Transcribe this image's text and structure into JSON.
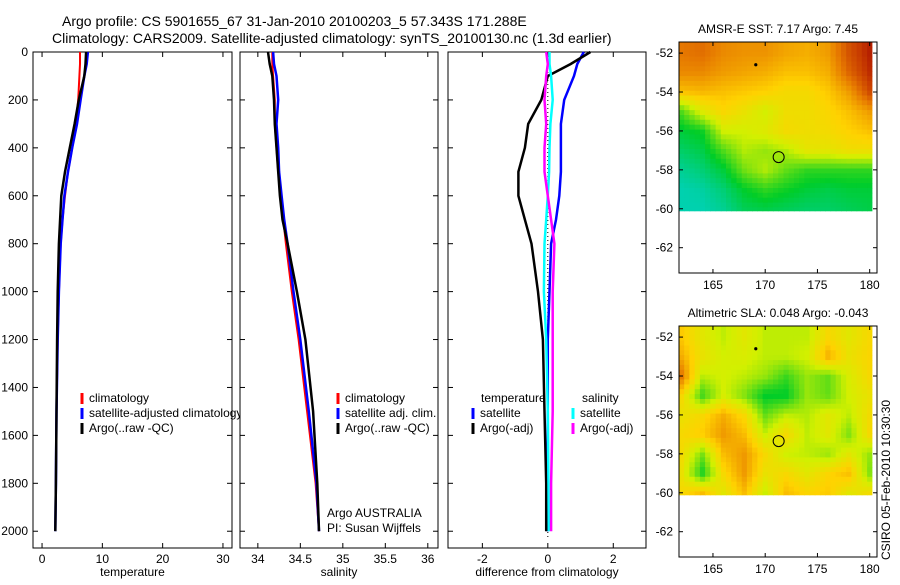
{
  "title_line1": "Argo profile: CS 5901655_67 31-Jan-2010 20100203_5 57.343S 171.288E",
  "title_line2": "Climatology: CARS2009. Satellite-adjusted climatology: synTS_20100130.nc (1.3d earlier)",
  "footer_stamp": "CSIRO 05-Feb-2010 10:30:30",
  "annotation": {
    "line1": "Argo AUSTRALIA",
    "line2": "PI: Susan Wijffels"
  },
  "colors": {
    "climatology": "#ff0000",
    "satellite": "#0000ff",
    "argo": "#000000",
    "sal_satellite": "#00ffff",
    "sal_argo": "#ff00ff"
  },
  "chart_data": [
    {
      "type": "line",
      "xlabel": "temperature",
      "xlim": [
        -1.5,
        31.5
      ],
      "ylim": [
        0,
        2070
      ],
      "xticks": [
        0,
        10,
        20,
        30
      ],
      "yticks": [
        0,
        200,
        400,
        600,
        800,
        1000,
        1200,
        1400,
        1600,
        1800,
        2000
      ],
      "depth": [
        0,
        50,
        100,
        200,
        300,
        400,
        500,
        600,
        700,
        800,
        1000,
        1200,
        1500,
        1800,
        2000
      ],
      "series": [
        {
          "name": "climatology",
          "color": "#ff0000",
          "values": [
            6.3,
            6.3,
            6.2,
            6.0,
            5.6,
            5.0,
            4.3,
            3.8,
            3.4,
            3.1,
            2.8,
            2.6,
            2.4,
            2.3,
            null
          ]
        },
        {
          "name": "satellite-adjusted climatology",
          "color": "#0000ff",
          "values": [
            7.6,
            7.4,
            7.0,
            6.4,
            5.8,
            5.0,
            4.3,
            3.7,
            3.4,
            3.1,
            2.8,
            2.6,
            2.4,
            2.3,
            2.2
          ]
        },
        {
          "name": "Argo(..raw -QC)",
          "color": "#000000",
          "values": [
            7.3,
            7.2,
            7.0,
            6.1,
            5.4,
            4.6,
            3.8,
            3.2,
            3.0,
            2.8,
            2.6,
            2.5,
            2.4,
            2.3,
            2.2
          ]
        }
      ],
      "legend": [
        "climatology",
        "satellite-adjusted climatology",
        "Argo(..raw -QC)"
      ]
    },
    {
      "type": "line",
      "xlabel": "salinity",
      "xlim": [
        33.79,
        36.12
      ],
      "ylim": [
        0,
        2070
      ],
      "xticks": [
        34,
        34.5,
        35,
        35.5,
        36
      ],
      "depth": [
        0,
        50,
        100,
        200,
        300,
        400,
        500,
        600,
        700,
        800,
        1000,
        1200,
        1500,
        1800,
        2000
      ],
      "series": [
        {
          "name": "climatology",
          "color": "#ff0000",
          "values": [
            34.17,
            34.17,
            34.18,
            34.2,
            34.2,
            34.22,
            34.24,
            34.27,
            34.3,
            34.33,
            34.4,
            34.48,
            34.58,
            34.68,
            34.72
          ]
        },
        {
          "name": "satellite adj. clim.",
          "color": "#0000ff",
          "values": [
            34.18,
            34.19,
            34.22,
            34.24,
            34.22,
            34.24,
            34.25,
            34.28,
            34.31,
            34.35,
            34.42,
            34.5,
            34.6,
            34.69,
            34.72
          ]
        },
        {
          "name": "Argo(..raw -QC)",
          "color": "#000000",
          "values": [
            34.12,
            34.14,
            34.17,
            34.19,
            34.2,
            34.22,
            34.24,
            34.26,
            34.29,
            34.35,
            34.46,
            34.56,
            34.65,
            34.7,
            34.72
          ]
        }
      ],
      "legend": [
        "climatology",
        "satellite adj. clim.",
        "Argo(..raw -QC)"
      ]
    },
    {
      "type": "line",
      "xlabel": "difference from climatology",
      "xlim": [
        -3.05,
        3.0
      ],
      "ylim": [
        0,
        2070
      ],
      "xticks": [
        -2,
        0,
        2
      ],
      "depth": [
        0,
        50,
        100,
        200,
        300,
        400,
        500,
        600,
        700,
        800,
        1000,
        1200,
        1500,
        1800,
        2000
      ],
      "series": [
        {
          "name": "temperature satellite",
          "color": "#0000ff",
          "values": [
            1.1,
            0.9,
            0.8,
            0.5,
            0.4,
            0.4,
            0.4,
            0.35,
            0.25,
            0.1,
            0.05,
            0.0,
            0.0,
            0.0,
            0.0
          ]
        },
        {
          "name": "temperature Argo(-adj)",
          "color": "#000000",
          "values": [
            1.3,
            0.7,
            0.0,
            -0.2,
            -0.6,
            -0.7,
            -0.9,
            -0.9,
            -0.7,
            -0.5,
            -0.3,
            -0.15,
            -0.1,
            -0.05,
            -0.05
          ]
        },
        {
          "name": "salinity satellite",
          "color": "#00ffff",
          "values": [
            0.05,
            0.05,
            0.1,
            0.15,
            0.08,
            0.05,
            0.04,
            0.0,
            -0.05,
            -0.1,
            -0.12,
            -0.05,
            0.0,
            0.02,
            0.03
          ]
        },
        {
          "name": "salinity Argo(-adj)",
          "color": "#ff00ff",
          "values": [
            -0.05,
            0.0,
            -0.05,
            -0.1,
            -0.05,
            -0.1,
            -0.1,
            0.0,
            0.1,
            0.2,
            0.15,
            0.15,
            0.15,
            0.1,
            0.1
          ]
        }
      ],
      "legend_temperature": {
        "heading": "temperature",
        "items": [
          "satellite",
          "Argo(-adj)"
        ]
      },
      "legend_salinity": {
        "heading": "salinity",
        "items": [
          "satellite",
          "Argo(-adj)"
        ]
      }
    },
    {
      "type": "heatmap",
      "title": "AMSR-E SST: 7.17 Argo: 7.45",
      "xlim": [
        161.75,
        180.7
      ],
      "ylim": [
        -63.3,
        -51.43
      ],
      "xticks": [
        165,
        170,
        175,
        180
      ],
      "yticks": [
        -52,
        -54,
        -56,
        -58,
        -60,
        -62
      ],
      "lon": [
        162,
        164,
        166,
        168,
        170,
        172,
        174,
        176,
        178,
        180
      ],
      "lat": [
        -52,
        -53,
        -54,
        -55,
        -56,
        -57,
        -58,
        -59,
        -60
      ],
      "crange": [
        4.5,
        10
      ],
      "values": [
        [
          8.8,
          8.9,
          8.6,
          8.5,
          8.5,
          8.3,
          8.2,
          8.4,
          9.2,
          9.7
        ],
        [
          8.6,
          8.6,
          8.4,
          8.3,
          8.2,
          8.0,
          8.0,
          8.2,
          9.0,
          9.6
        ],
        [
          8.0,
          8.1,
          8.0,
          7.9,
          7.8,
          7.6,
          7.6,
          7.9,
          8.4,
          9.3
        ],
        [
          6.2,
          7.2,
          7.7,
          7.4,
          7.0,
          7.5,
          7.5,
          7.7,
          8.0,
          8.4
        ],
        [
          5.6,
          5.8,
          7.0,
          7.0,
          7.2,
          7.6,
          7.5,
          7.6,
          7.8,
          8.0
        ],
        [
          5.3,
          5.5,
          6.2,
          6.8,
          6.6,
          6.8,
          7.3,
          7.3,
          7.5,
          7.5
        ],
        [
          5.0,
          5.2,
          5.6,
          6.4,
          6.8,
          6.3,
          6.0,
          6.0,
          6.0,
          6.0
        ],
        [
          4.8,
          4.9,
          5.2,
          5.7,
          6.0,
          5.8,
          5.6,
          5.5,
          5.6,
          5.6
        ],
        [
          4.8,
          4.8,
          5.0,
          5.4,
          5.5,
          5.4,
          5.3,
          5.3,
          5.4,
          5.5
        ]
      ],
      "profile_location": [
        171.288,
        -57.343
      ],
      "previous_location": [
        169.1,
        -52.6
      ]
    },
    {
      "type": "heatmap",
      "title": "Altimetric SLA: 0.048 Argo: -0.043",
      "xlim": [
        161.75,
        180.7
      ],
      "ylim": [
        -63.3,
        -51.43
      ],
      "xticks": [
        165,
        170,
        175,
        180
      ],
      "yticks": [
        -52,
        -54,
        -56,
        -58,
        -60,
        -62
      ],
      "lon": [
        162,
        164,
        166,
        168,
        170,
        172,
        174,
        176,
        178,
        180
      ],
      "lat": [
        -52,
        -53,
        -54,
        -55,
        -56,
        -57,
        -58,
        -59,
        -60
      ],
      "crange": [
        -0.35,
        0.35
      ],
      "values": [
        [
          0.08,
          0.0,
          -0.05,
          0.0,
          -0.05,
          -0.05,
          -0.05,
          0.05,
          0.0,
          0.05
        ],
        [
          0.12,
          0.02,
          -0.03,
          -0.02,
          -0.05,
          -0.05,
          -0.03,
          0.12,
          0.02,
          0.06
        ],
        [
          0.2,
          -0.05,
          -0.03,
          -0.05,
          -0.08,
          -0.15,
          -0.08,
          -0.12,
          -0.02,
          0.05
        ],
        [
          0.05,
          -0.15,
          -0.03,
          -0.1,
          -0.2,
          -0.2,
          -0.08,
          -0.12,
          -0.03,
          0.02
        ],
        [
          0.02,
          0.05,
          0.12,
          0.05,
          -0.12,
          -0.05,
          -0.06,
          0.0,
          -0.05,
          0.04
        ],
        [
          0.05,
          0.08,
          0.15,
          0.1,
          -0.04,
          0.05,
          -0.05,
          0.0,
          -0.1,
          0.05
        ],
        [
          0.04,
          -0.1,
          0.1,
          0.15,
          0.05,
          -0.04,
          -0.05,
          -0.08,
          0.0,
          -0.08
        ],
        [
          0.02,
          -0.18,
          0.05,
          0.15,
          0.02,
          0.05,
          0.0,
          0.06,
          0.1,
          -0.1
        ],
        [
          0.05,
          0.1,
          0.0,
          0.1,
          -0.04,
          0.1,
          0.06,
          0.08,
          0.0,
          0.04
        ]
      ],
      "profile_location": [
        171.288,
        -57.343
      ],
      "previous_location": [
        169.1,
        -52.6
      ]
    }
  ]
}
